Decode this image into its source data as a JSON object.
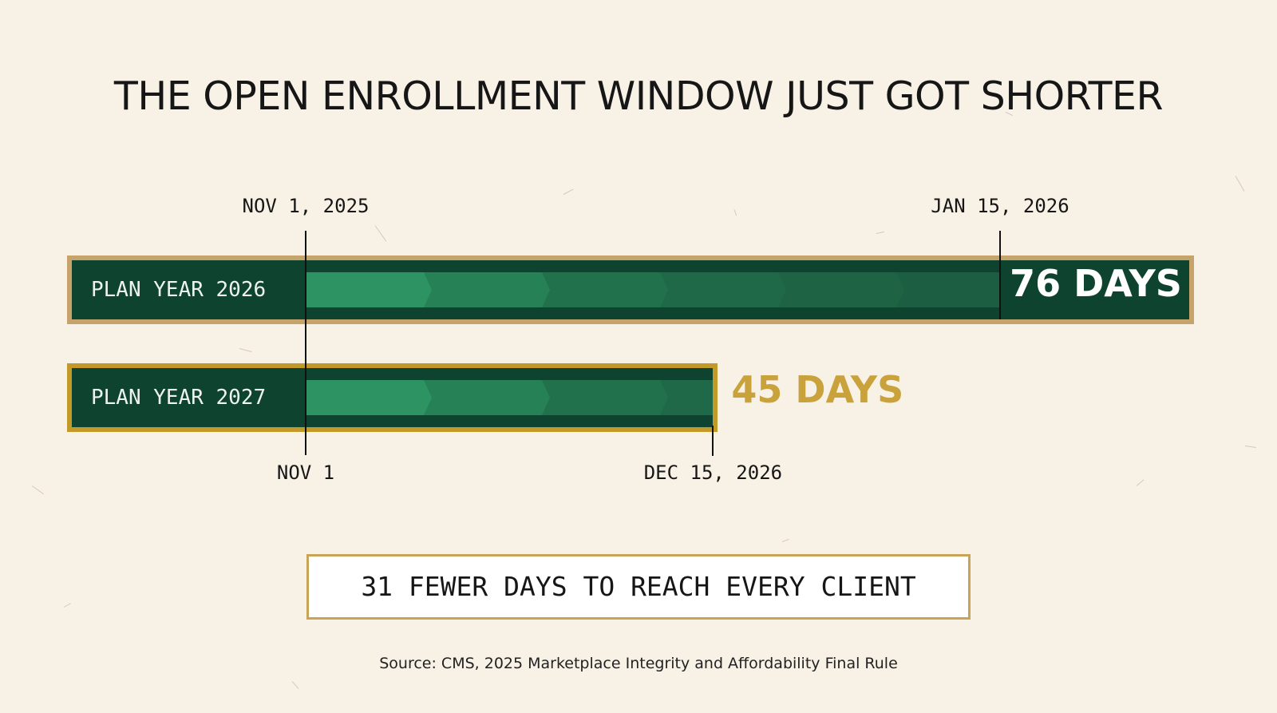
{
  "title": "THE OPEN ENROLLMENT WINDOW JUST GOT SHORTER",
  "chart_data": {
    "type": "bar",
    "orientation": "horizontal",
    "title": "THE OPEN ENROLLMENT WINDOW JUST GOT SHORTER",
    "series": [
      {
        "label": "PLAN YEAR 2026",
        "start": "2025-11-01",
        "end": "2026-01-15",
        "start_label": "NOV 1, 2025",
        "end_label": "JAN 15, 2026",
        "days": 76,
        "days_label": "76 DAYS"
      },
      {
        "label": "PLAN YEAR 2027",
        "start": "2026-11-01",
        "end": "2026-12-15",
        "start_label": "NOV 1",
        "end_label": "DEC 15, 2026",
        "days": 45,
        "days_label": "45 DAYS"
      }
    ],
    "colors": {
      "bar": "#0e4330",
      "track": "#1e6c4a",
      "border_plan_2026": "#c5a36b",
      "border_plan_2027": "#c29a2a",
      "accent_text": "#c9a23c"
    }
  },
  "callout": "31 FEWER DAYS TO REACH EVERY CLIENT",
  "source": "Source: CMS, 2025 Marketplace Integrity and Affordability Final Rule"
}
